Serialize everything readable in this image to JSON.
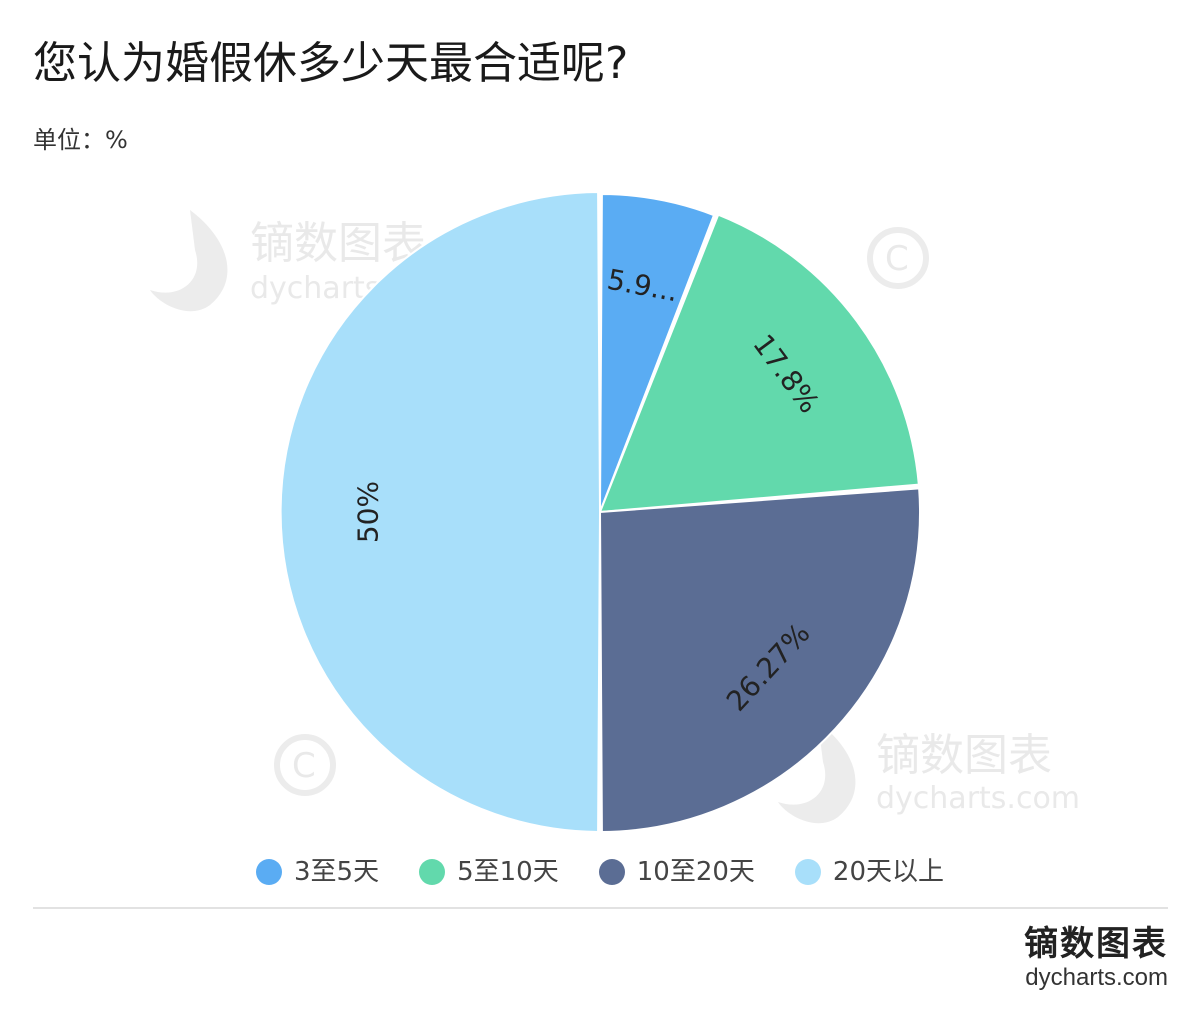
{
  "header": {
    "title": "您认为婚假休多少天最合适呢?",
    "unit": "单位：%"
  },
  "chart_data": {
    "type": "pie",
    "title": "您认为婚假休多少天最合适呢?",
    "unit": "单位：%",
    "categories": [
      "3至5天",
      "5至10天",
      "10至20天",
      "20天以上"
    ],
    "values": [
      5.93,
      17.8,
      26.27,
      50
    ],
    "data_labels": [
      "5.9...",
      "17.8%",
      "26.27%",
      "50%"
    ],
    "colors": [
      "#5aacf3",
      "#62d9ac",
      "#5b6d94",
      "#a8dffa"
    ],
    "legend_position": "bottom",
    "start_angle": "top"
  },
  "legend": [
    {
      "label": "3至5天",
      "color": "#5aacf3"
    },
    {
      "label": "5至10天",
      "color": "#62d9ac"
    },
    {
      "label": "10至20天",
      "color": "#5b6d94"
    },
    {
      "label": "20天以上",
      "color": "#a8dffa"
    }
  ],
  "watermark": {
    "brand_cn": "镝数图表",
    "brand_url": "dycharts.com"
  },
  "footer": {
    "brand_cn": "镝数图表",
    "brand_url": "dycharts.com"
  }
}
